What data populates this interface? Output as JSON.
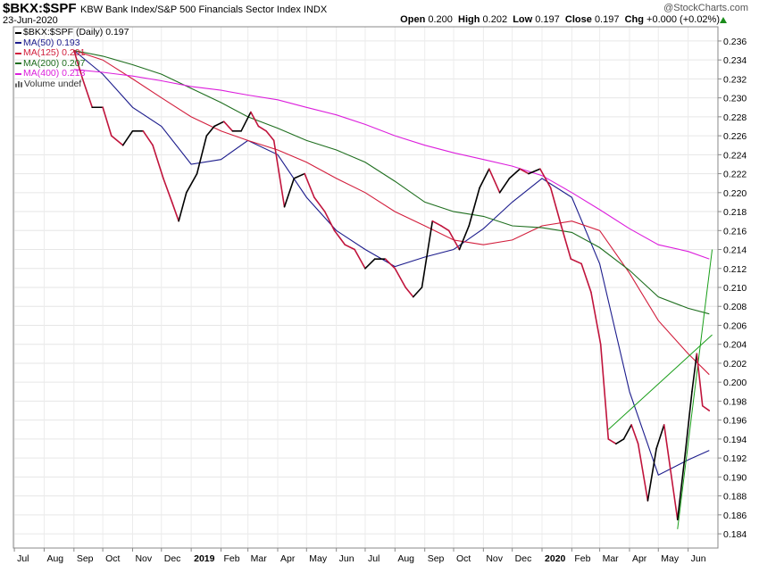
{
  "header": {
    "symbol": "$BKX:$SPF",
    "description": "KBW Bank Index/S&P 500 Financials Sector Index",
    "exchange": "INDX",
    "date": "23-Jun-2020",
    "watermark": "@StockCharts.com",
    "quote": {
      "open_label": "Open",
      "open": "0.200",
      "high_label": "High",
      "high": "0.202",
      "low_label": "Low",
      "low": "0.197",
      "close_label": "Close",
      "close": "0.197",
      "chg_label": "Chg",
      "chg": "+0.000 (+0.02%)"
    },
    "chg_arrow_icon": "up-triangle-icon"
  },
  "legend": [
    {
      "label": "$BKX:$SPF (Daily) 0.197",
      "color": "#000000"
    },
    {
      "label": "MA(50) 0.193",
      "color": "#1c1c8c"
    },
    {
      "label": "MA(125) 0.201",
      "color": "#d21e3c"
    },
    {
      "label": "MA(200) 0.207",
      "color": "#1e6e1e"
    },
    {
      "label": "MA(400) 0.213",
      "color": "#dc1edc"
    },
    {
      "label": "Volume undef",
      "color": "#666666",
      "icon": "volume-bars-icon"
    }
  ],
  "chart_data": {
    "type": "line",
    "x_tick_labels": [
      "Jul",
      "Aug",
      "Sep",
      "Oct",
      "Nov",
      "Dec",
      "2019",
      "Feb",
      "Mar",
      "Apr",
      "May",
      "Jun",
      "Jul",
      "Aug",
      "Sep",
      "Oct",
      "Nov",
      "Dec",
      "2020",
      "Feb",
      "Mar",
      "Apr",
      "May",
      "Jun"
    ],
    "bold_tick_labels": [
      "2019",
      "2020"
    ],
    "y_tick_labels": [
      "0.184",
      "0.186",
      "0.188",
      "0.190",
      "0.192",
      "0.194",
      "0.196",
      "0.198",
      "0.200",
      "0.202",
      "0.204",
      "0.206",
      "0.208",
      "0.210",
      "0.212",
      "0.214",
      "0.216",
      "0.218",
      "0.220",
      "0.222",
      "0.224",
      "0.226",
      "0.228",
      "0.230",
      "0.232",
      "0.234",
      "0.236"
    ],
    "ylim": [
      0.1825,
      0.2375
    ],
    "grid": true,
    "colors": {
      "price_up": "#000000",
      "price_down": "#c0143c",
      "ma50": "#1c1c8c",
      "ma125": "#d21e3c",
      "ma200": "#1e6e1e",
      "ma400": "#dc1edc",
      "trendline": "#1a9e1a"
    },
    "price_series": {
      "name": "$BKX:$SPF (Daily)",
      "x": [
        "2018-09-01",
        "2018-09-10",
        "2018-09-20",
        "2018-10-01",
        "2018-10-10",
        "2018-10-22",
        "2018-11-01",
        "2018-11-12",
        "2018-11-22",
        "2018-12-03",
        "2018-12-12",
        "2018-12-19",
        "2018-12-27",
        "2019-01-07",
        "2019-01-17",
        "2019-01-25",
        "2019-02-04",
        "2019-02-13",
        "2019-02-22",
        "2019-03-04",
        "2019-03-12",
        "2019-03-20",
        "2019-03-28",
        "2019-04-08",
        "2019-04-18",
        "2019-04-29",
        "2019-05-09",
        "2019-05-20",
        "2019-05-30",
        "2019-06-10",
        "2019-06-20",
        "2019-07-01",
        "2019-07-11",
        "2019-07-22",
        "2019-08-01",
        "2019-08-12",
        "2019-08-20",
        "2019-08-29",
        "2019-09-09",
        "2019-09-18",
        "2019-09-26",
        "2019-10-07",
        "2019-10-17",
        "2019-10-28",
        "2019-11-07",
        "2019-11-18",
        "2019-11-28",
        "2019-12-09",
        "2019-12-18",
        "2019-12-30",
        "2020-01-10",
        "2020-01-21",
        "2020-01-31",
        "2020-02-11",
        "2020-02-21",
        "2020-03-02",
        "2020-03-10",
        "2020-03-18",
        "2020-03-26",
        "2020-04-03",
        "2020-04-10",
        "2020-04-20",
        "2020-04-29",
        "2020-05-07",
        "2020-05-14",
        "2020-05-21",
        "2020-05-29",
        "2020-06-05",
        "2020-06-10",
        "2020-06-16",
        "2020-06-23"
      ],
      "y": [
        0.235,
        0.232,
        0.229,
        0.229,
        0.226,
        0.225,
        0.2265,
        0.2265,
        0.225,
        0.2215,
        0.219,
        0.217,
        0.22,
        0.222,
        0.226,
        0.227,
        0.2275,
        0.2265,
        0.2265,
        0.2285,
        0.227,
        0.2265,
        0.2255,
        0.2185,
        0.2215,
        0.222,
        0.2195,
        0.218,
        0.216,
        0.2145,
        0.214,
        0.212,
        0.213,
        0.213,
        0.212,
        0.21,
        0.209,
        0.21,
        0.217,
        0.2165,
        0.216,
        0.214,
        0.2165,
        0.2205,
        0.2225,
        0.22,
        0.2215,
        0.2225,
        0.222,
        0.2225,
        0.2205,
        0.2165,
        0.213,
        0.2125,
        0.2095,
        0.204,
        0.194,
        0.1935,
        0.194,
        0.1955,
        0.1935,
        0.1875,
        0.193,
        0.1955,
        0.1905,
        0.1855,
        0.1925,
        0.199,
        0.203,
        0.1975,
        0.197
      ]
    },
    "ma_series": [
      {
        "name": "MA(50)",
        "x": [
          "2018-09-01",
          "2018-10-01",
          "2018-11-01",
          "2018-12-01",
          "2019-01-01",
          "2019-02-01",
          "2019-03-01",
          "2019-04-01",
          "2019-05-01",
          "2019-06-01",
          "2019-07-01",
          "2019-08-01",
          "2019-09-01",
          "2019-10-01",
          "2019-11-01",
          "2019-12-01",
          "2020-01-01",
          "2020-02-01",
          "2020-03-01",
          "2020-04-01",
          "2020-05-01",
          "2020-06-01",
          "2020-06-23"
        ],
        "y": [
          0.235,
          0.2325,
          0.229,
          0.227,
          0.223,
          0.2235,
          0.2255,
          0.224,
          0.2195,
          0.216,
          0.214,
          0.2122,
          0.2132,
          0.214,
          0.2162,
          0.219,
          0.2215,
          0.2195,
          0.2125,
          0.199,
          0.1902,
          0.1918,
          0.1928
        ]
      },
      {
        "name": "MA(125)",
        "x": [
          "2018-09-01",
          "2018-10-01",
          "2018-11-01",
          "2018-12-01",
          "2019-01-01",
          "2019-02-01",
          "2019-03-01",
          "2019-04-01",
          "2019-05-01",
          "2019-06-01",
          "2019-07-01",
          "2019-08-01",
          "2019-09-01",
          "2019-10-01",
          "2019-11-01",
          "2019-12-01",
          "2020-01-01",
          "2020-02-01",
          "2020-03-01",
          "2020-04-01",
          "2020-05-01",
          "2020-06-01",
          "2020-06-23"
        ],
        "y": [
          0.235,
          0.234,
          0.232,
          0.23,
          0.228,
          0.2265,
          0.2255,
          0.2245,
          0.2232,
          0.2215,
          0.22,
          0.218,
          0.2165,
          0.215,
          0.2145,
          0.215,
          0.2165,
          0.217,
          0.216,
          0.2115,
          0.2065,
          0.203,
          0.2008
        ]
      },
      {
        "name": "MA(200)",
        "x": [
          "2018-09-01",
          "2018-10-01",
          "2018-11-01",
          "2018-12-01",
          "2019-01-01",
          "2019-02-01",
          "2019-03-01",
          "2019-04-01",
          "2019-05-01",
          "2019-06-01",
          "2019-07-01",
          "2019-08-01",
          "2019-09-01",
          "2019-10-01",
          "2019-11-01",
          "2019-12-01",
          "2020-01-01",
          "2020-02-01",
          "2020-03-01",
          "2020-04-01",
          "2020-05-01",
          "2020-06-01",
          "2020-06-23"
        ],
        "y": [
          0.235,
          0.2344,
          0.2335,
          0.2325,
          0.231,
          0.2295,
          0.228,
          0.2268,
          0.2255,
          0.2245,
          0.2232,
          0.2212,
          0.219,
          0.218,
          0.2175,
          0.2165,
          0.2163,
          0.2158,
          0.2142,
          0.2118,
          0.209,
          0.2078,
          0.2072
        ]
      },
      {
        "name": "MA(400)",
        "x": [
          "2018-09-01",
          "2018-10-01",
          "2018-11-01",
          "2018-12-01",
          "2019-01-01",
          "2019-02-01",
          "2019-03-01",
          "2019-04-01",
          "2019-05-01",
          "2019-06-01",
          "2019-07-01",
          "2019-08-01",
          "2019-09-01",
          "2019-10-01",
          "2019-11-01",
          "2019-12-01",
          "2020-01-01",
          "2020-02-01",
          "2020-03-01",
          "2020-04-01",
          "2020-05-01",
          "2020-06-01",
          "2020-06-23"
        ],
        "y": [
          0.233,
          0.2327,
          0.2323,
          0.2318,
          0.2312,
          0.2308,
          0.2303,
          0.2298,
          0.229,
          0.2282,
          0.2272,
          0.226,
          0.225,
          0.2242,
          0.2235,
          0.2228,
          0.2218,
          0.22,
          0.2182,
          0.2162,
          0.2145,
          0.2138,
          0.213
        ]
      }
    ],
    "trendlines": [
      {
        "x": [
          "2020-03-10",
          "2020-06-26"
        ],
        "y": [
          0.195,
          0.205
        ]
      },
      {
        "x": [
          "2020-05-21",
          "2020-06-26"
        ],
        "y": [
          0.1845,
          0.214
        ]
      }
    ]
  }
}
